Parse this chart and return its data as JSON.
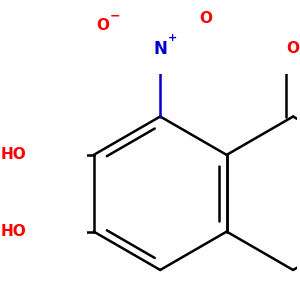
{
  "bg_color": "#ffffff",
  "bond_color": "#000000",
  "bond_width": 1.8,
  "atom_colors": {
    "O": "#ff0000",
    "N": "#0000cc",
    "C": "#000000"
  },
  "font_size_atoms": 11,
  "s": 0.42
}
